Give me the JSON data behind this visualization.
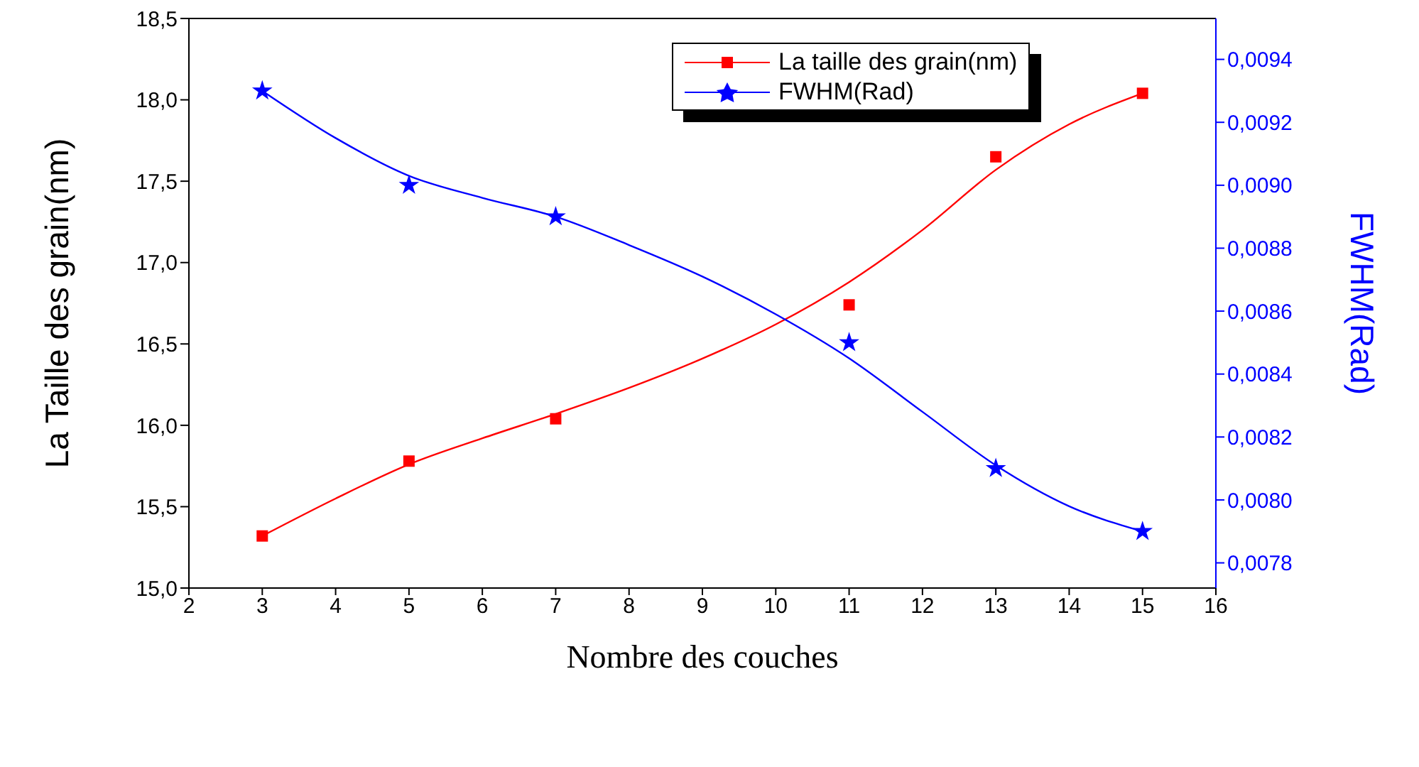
{
  "chart_data": {
    "type": "scatter",
    "xlabel": "Nombre des couches",
    "ylabel": "La Taille des grain(nm)",
    "y2label": "FWHM(Rad)",
    "xlim": [
      2,
      16
    ],
    "xticks": [
      2,
      3,
      4,
      5,
      6,
      7,
      8,
      9,
      10,
      11,
      12,
      13,
      14,
      15,
      16
    ],
    "ylim": [
      15,
      18.5
    ],
    "yticks": [
      {
        "value": 15,
        "label": "15,0"
      },
      {
        "value": 15.5,
        "label": "15,5"
      },
      {
        "value": 16,
        "label": "16,0"
      },
      {
        "value": 16.5,
        "label": "16,5"
      },
      {
        "value": 17,
        "label": "17,0"
      },
      {
        "value": 17.5,
        "label": "17,5"
      },
      {
        "value": 18,
        "label": "18,0"
      },
      {
        "value": 18.5,
        "label": "18,5"
      }
    ],
    "y2lim": [
      0.00772,
      0.00953
    ],
    "y2ticks": [
      {
        "value": 0.0078,
        "label": "0,0078"
      },
      {
        "value": 0.008,
        "label": "0,0080"
      },
      {
        "value": 0.0082,
        "label": "0,0082"
      },
      {
        "value": 0.0084,
        "label": "0,0084"
      },
      {
        "value": 0.0086,
        "label": "0,0086"
      },
      {
        "value": 0.0088,
        "label": "0,0088"
      },
      {
        "value": 0.009,
        "label": "0,0090"
      },
      {
        "value": 0.0092,
        "label": "0,0092"
      },
      {
        "value": 0.0094,
        "label": "0,0094"
      }
    ],
    "grid": false,
    "legend": "top right",
    "series": [
      {
        "name": "La taille des grain(nm)",
        "marker": "square",
        "color": "#ff0000",
        "x": [
          3,
          5,
          7,
          11,
          13,
          15
        ],
        "values": [
          15.32,
          15.78,
          16.04,
          16.74,
          17.65,
          18.04
        ]
      },
      {
        "type": "line",
        "marker": "none",
        "color": "#ff0000",
        "x": [
          3,
          4,
          5,
          6,
          7,
          8,
          9,
          10,
          11,
          12,
          13,
          14,
          15
        ],
        "values": [
          15.32,
          15.55,
          15.76,
          15.92,
          16.07,
          16.23,
          16.41,
          16.62,
          16.88,
          17.2,
          17.57,
          17.85,
          18.04
        ]
      },
      {
        "name": "FWHM(Rad)",
        "marker": "star",
        "color": "#0000ff",
        "axis": "y2",
        "x": [
          3,
          5,
          7,
          11,
          13,
          15
        ],
        "values": [
          0.0093,
          0.009,
          0.0089,
          0.0085,
          0.0081,
          0.0079
        ]
      },
      {
        "type": "line",
        "marker": "none",
        "color": "#0000ff",
        "axis": "y2",
        "x": [
          3,
          4,
          5,
          6,
          7,
          8,
          9,
          10,
          11,
          12,
          13,
          14,
          15
        ],
        "values": [
          0.0093,
          0.00915,
          0.00903,
          0.00896,
          0.0089,
          0.00881,
          0.00871,
          0.00859,
          0.00845,
          0.00828,
          0.00811,
          0.00798,
          0.0079
        ]
      }
    ]
  }
}
